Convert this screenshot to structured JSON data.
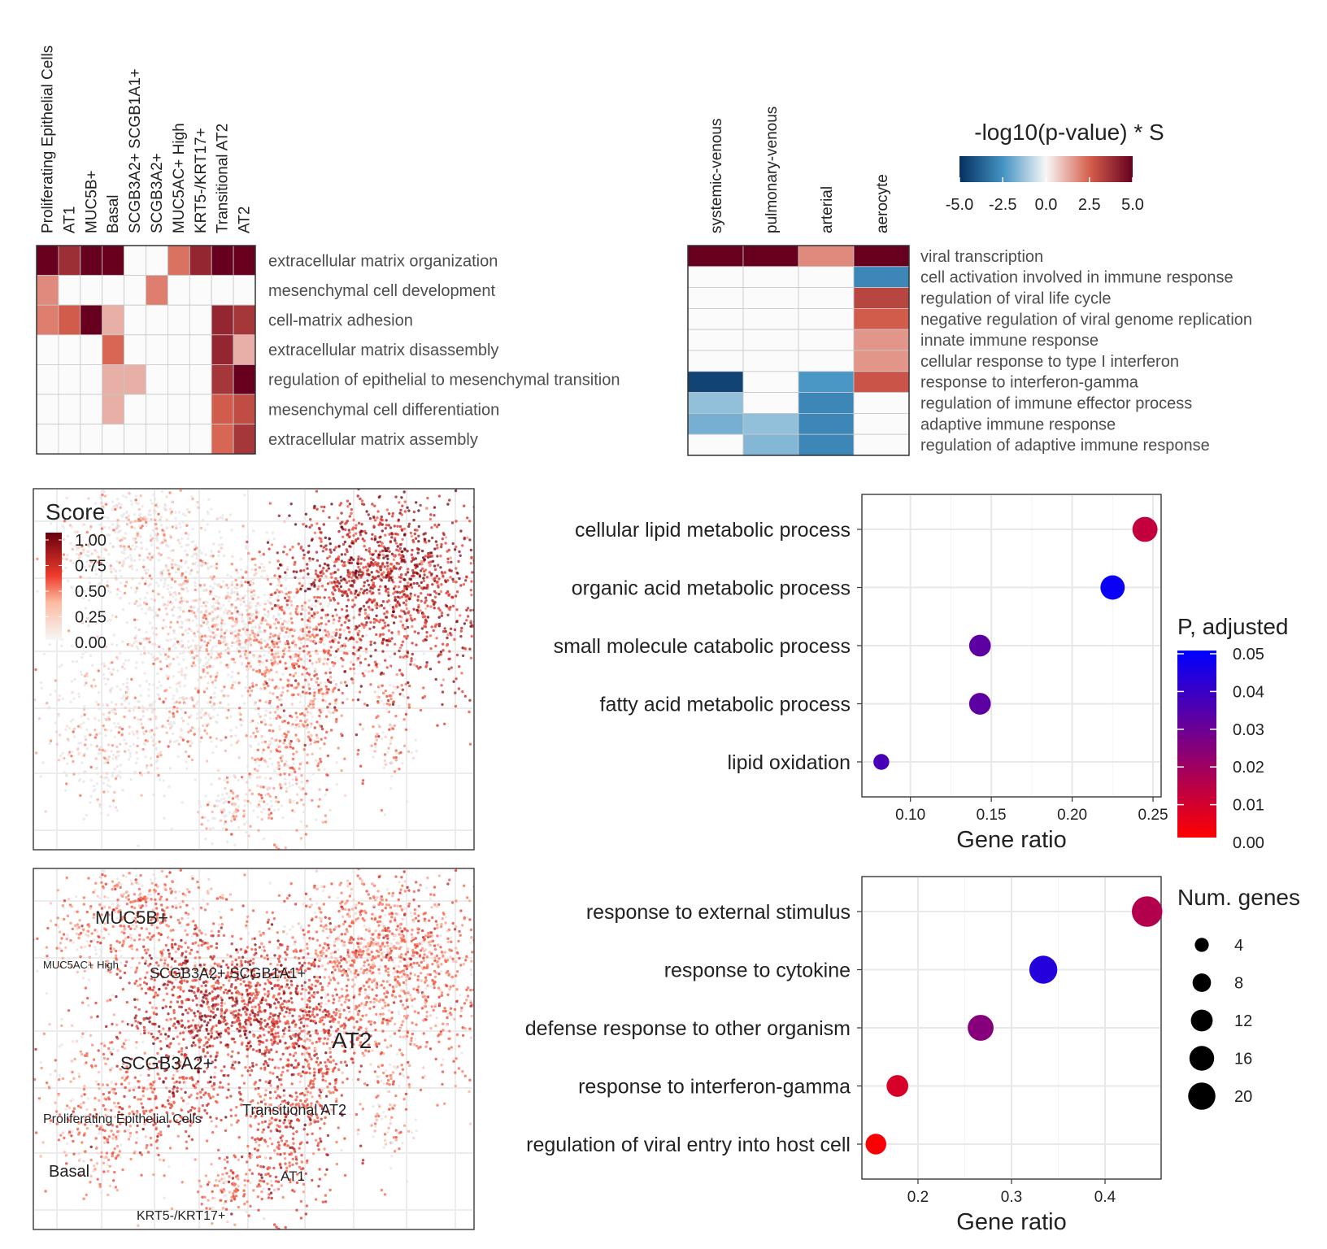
{
  "chart_data": [
    {
      "type": "heatmap",
      "columns": [
        "Proliferating Epithelial Cells",
        "AT1",
        "MUC5B+",
        "Basal",
        "SCGB3A2+ SCGB1A1+",
        "SCGB3A2+",
        "MUC5AC+ High",
        "KRT5-/KRT17+",
        "Transitional AT2",
        "AT2"
      ],
      "rows": [
        "extracellular matrix organization",
        "mesenchymal cell development",
        "cell-matrix adhesion",
        "extracellular matrix disassembly",
        "regulation of epithelial to mesenchymal transition",
        "mesenchymal cell differentiation",
        "extracellular matrix assembly"
      ],
      "values": [
        [
          5.0,
          3.8,
          5.0,
          5.0,
          0,
          0,
          2.2,
          4.0,
          5.0,
          5.0
        ],
        [
          1.8,
          0,
          0,
          0,
          0,
          2.0,
          0,
          0,
          0,
          0
        ],
        [
          2.0,
          2.6,
          5.0,
          1.2,
          0,
          0,
          0,
          0,
          4.0,
          3.6
        ],
        [
          0,
          0,
          0,
          2.4,
          0,
          0,
          0,
          0,
          4.0,
          1.2
        ],
        [
          0,
          0,
          0,
          1.2,
          1.2,
          0,
          0,
          0,
          3.6,
          5.0
        ],
        [
          0,
          0,
          0,
          1.2,
          0,
          0,
          0,
          0,
          2.6,
          3.0
        ],
        [
          0,
          0,
          0,
          0,
          0,
          0,
          0,
          0,
          2.4,
          3.6
        ]
      ]
    },
    {
      "type": "heatmap",
      "columns": [
        "systemic-venous",
        "pulmonary-venous",
        "arterial",
        "aerocyte"
      ],
      "rows": [
        "viral transcription",
        "cell activation involved in immune response",
        "regulation of viral life cycle",
        "negative regulation of viral genome replication",
        "innate immune response",
        "cellular response to type I interferon",
        "response to interferon-gamma",
        "regulation of immune effector process",
        "adaptive immune response",
        "regulation of adaptive immune response"
      ],
      "values": [
        [
          5.0,
          5.0,
          1.8,
          5.0
        ],
        [
          0,
          0,
          0,
          -2.8
        ],
        [
          0,
          0,
          0,
          3.2
        ],
        [
          0,
          0,
          0,
          2.6
        ],
        [
          0,
          0,
          0,
          1.6
        ],
        [
          0,
          0,
          0,
          1.6
        ],
        [
          -4.5,
          0,
          -2.4,
          2.8
        ],
        [
          -1.4,
          0,
          -2.8,
          0
        ],
        [
          -1.8,
          -1.4,
          -2.8,
          0
        ],
        [
          0,
          -1.6,
          -2.8,
          0
        ]
      ],
      "legend": {
        "title": "-log10(p-value) * S",
        "ticks": [
          "-5.0",
          "-2.5",
          "0.0",
          "2.5",
          "5.0"
        ],
        "range": [
          -5,
          5
        ],
        "colors": [
          "#053061",
          "#4393c3",
          "#f7f7f7",
          "#d6604d",
          "#67001f"
        ]
      }
    },
    {
      "type": "scatter",
      "subtype": "umap-feature",
      "legend": {
        "title": "Score",
        "ticks": [
          "1.00",
          "0.75",
          "0.50",
          "0.25",
          "0.00"
        ],
        "colors": [
          "#f7f7f7",
          "#fb6a4a",
          "#de2d26",
          "#67000d"
        ]
      }
    },
    {
      "type": "scatter",
      "subtype": "dotplot",
      "categories": [
        "cellular lipid metabolic process",
        "organic acid metabolic process",
        "small molecule catabolic process",
        "fatty acid metabolic process",
        "lipid oxidation"
      ],
      "x": [
        0.245,
        0.225,
        0.143,
        0.143,
        0.082
      ],
      "padj": [
        0.012,
        0.048,
        0.032,
        0.032,
        0.036
      ],
      "num_genes": [
        12,
        11,
        8,
        8,
        3
      ],
      "xlabel": "Gene ratio",
      "xlim": [
        0.07,
        0.255
      ],
      "xticks": [
        "0.10",
        "0.15",
        "0.20",
        "0.25"
      ]
    },
    {
      "type": "scatter",
      "subtype": "dotplot",
      "categories": [
        "response to external stimulus",
        "response to cytokine",
        "defense response to other organism",
        "response to interferon-gamma",
        "regulation of viral entry into host cell"
      ],
      "x": [
        0.445,
        0.334,
        0.267,
        0.178,
        0.155
      ],
      "padj": [
        0.015,
        0.043,
        0.024,
        0.008,
        0.001
      ],
      "num_genes": [
        20,
        16,
        13,
        8,
        7
      ],
      "xlabel": "Gene ratio",
      "xlim": [
        0.14,
        0.46
      ],
      "xticks": [
        "0.2",
        "0.3",
        "0.4"
      ]
    },
    {
      "type": "scatter",
      "subtype": "umap-labeled",
      "labels": [
        "MUC5B+",
        "MUC5AC+ High",
        "SCGB3A2+ SCGB1A1+",
        "AT2",
        "SCGB3A2+",
        "Proliferating Epithelial Cells",
        "Transitional AT2",
        "Basal",
        "AT1",
        "KRT5-/KRT17+"
      ]
    }
  ],
  "legend_padj": {
    "title": "P, adjusted",
    "ticks": [
      "0.05",
      "0.04",
      "0.03",
      "0.02",
      "0.01",
      "0.00"
    ],
    "colors": [
      "#ff0000",
      "#0000ff"
    ]
  },
  "legend_genes": {
    "title": "Num. genes",
    "ticks": [
      "4",
      "8",
      "12",
      "16",
      "20"
    ]
  }
}
